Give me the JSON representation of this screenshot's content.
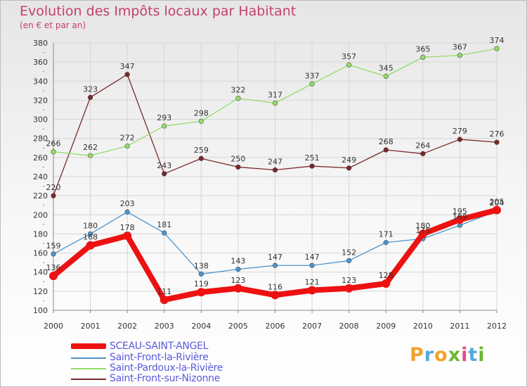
{
  "header": {
    "title": "Evolution des Impôts locaux par Habitant",
    "subtitle": "(en € et par an)"
  },
  "logo": {
    "text": "Proxiti",
    "colors": [
      "#f2a22b",
      "#56a8e0",
      "#f2a22b",
      "#6ab82f",
      "#e84a86",
      "#56a8e0",
      "#6ab82f"
    ]
  },
  "colors": {
    "title": "#c4406a",
    "legend_text": "#5a5ad8",
    "grid": "#d5d5d5",
    "axis": "#888888"
  },
  "chart_data": {
    "type": "line",
    "title": "Evolution des Impôts locaux par Habitant",
    "subtitle": "(en € et par an)",
    "xlabel": "",
    "ylabel": "",
    "x": [
      2000,
      2001,
      2002,
      2003,
      2004,
      2005,
      2006,
      2007,
      2008,
      2009,
      2010,
      2011,
      2012
    ],
    "x_tick_labels": [
      "2000",
      "2001",
      "2002",
      "2003",
      "2004",
      "2005",
      "2006",
      "2007",
      "2008",
      "2009",
      "2010",
      "2011",
      "2012"
    ],
    "ylim": [
      100,
      380
    ],
    "y_ticks": [
      100,
      120,
      140,
      160,
      180,
      200,
      220,
      240,
      260,
      280,
      300,
      320,
      340,
      360,
      380
    ],
    "y_tick_labels": [
      "100",
      "120",
      "140",
      "160",
      "180",
      "200",
      "220",
      "240",
      "260",
      "280",
      "300",
      "320",
      "340",
      "360",
      "380"
    ],
    "grid": true,
    "legend_position": "bottom-left",
    "series": [
      {
        "name": "SCEAU-SAINT-ANGEL",
        "values": [
          136,
          168,
          178,
          111,
          119,
          123,
          116,
          121,
          123,
          128,
          180,
          195,
          205
        ],
        "labels": [
          "136",
          "168",
          "178",
          "111",
          "119",
          "123",
          "116",
          "121",
          "123",
          "128",
          "180",
          "195",
          "205"
        ],
        "color": "#ee1111"
      },
      {
        "name": "Saint-Front-la-Rivière",
        "values": [
          159,
          180,
          203,
          181,
          138,
          143,
          147,
          147,
          152,
          171,
          175,
          189,
          204
        ],
        "labels": [
          "159",
          "180",
          "203",
          "181",
          "138",
          "143",
          "147",
          "147",
          "152",
          "171",
          "175",
          "189",
          "204"
        ],
        "color": "#4f95cc"
      },
      {
        "name": "Saint-Pardoux-la-Rivière",
        "values": [
          266,
          262,
          272,
          293,
          298,
          322,
          317,
          337,
          357,
          345,
          365,
          367,
          374
        ],
        "labels": [
          "266",
          "262",
          "272",
          "293",
          "298",
          "322",
          "317",
          "337",
          "357",
          "345",
          "365",
          "367",
          "374"
        ],
        "color": "#94dc6a"
      },
      {
        "name": "Saint-Front-sur-Nizonne",
        "values": [
          220,
          323,
          347,
          243,
          259,
          250,
          247,
          251,
          249,
          268,
          264,
          279,
          276
        ],
        "labels": [
          "220",
          "323",
          "347",
          "243",
          "259",
          "250",
          "247",
          "251",
          "249",
          "268",
          "264",
          "279",
          "276"
        ],
        "color": "#7a2a2a"
      }
    ]
  }
}
